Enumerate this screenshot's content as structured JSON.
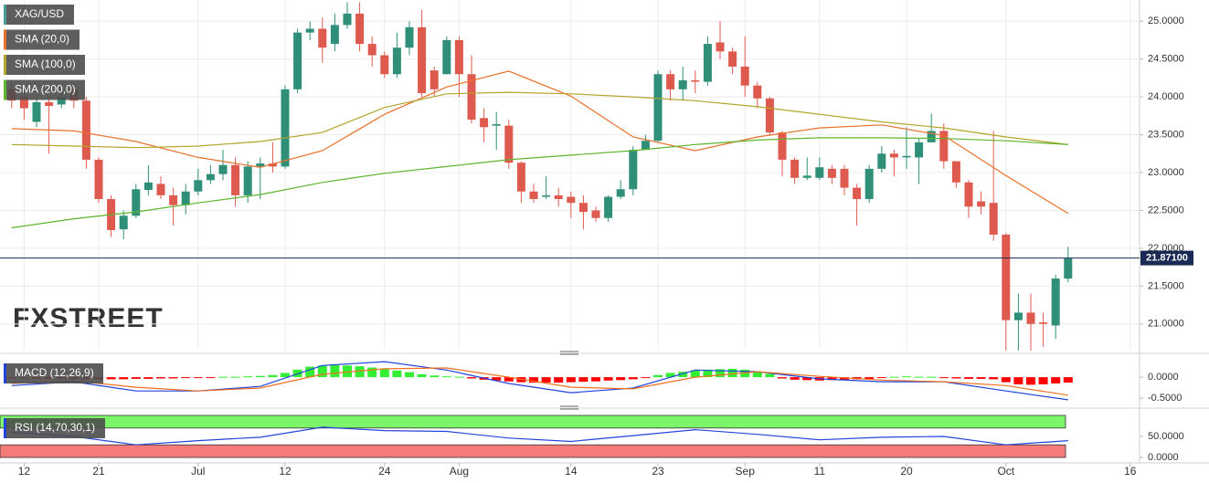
{
  "chart_data": [
    {
      "type": "candlestick",
      "watermark": "FXSTREET",
      "ylim": [
        20.66,
        25.28
      ],
      "yticks": [
        {
          "value": 21,
          "label": "21.0000"
        },
        {
          "value": 21.5,
          "label": "21.5000"
        },
        {
          "value": 22,
          "label": "22.0000"
        },
        {
          "value": 22.5,
          "label": "22.5000"
        },
        {
          "value": 23,
          "label": "23.0000"
        },
        {
          "value": 23.5,
          "label": "23.5000"
        },
        {
          "value": 24,
          "label": "24.0000"
        },
        {
          "value": 24.5,
          "label": "24.5000"
        },
        {
          "value": 25,
          "label": "25.0000"
        }
      ],
      "xlim": [
        -1,
        92
      ],
      "xticks": [
        {
          "value": 1,
          "label": "12"
        },
        {
          "value": 7,
          "label": "21"
        },
        {
          "value": 15,
          "label": "Jul"
        },
        {
          "value": 22,
          "label": "12"
        },
        {
          "value": 30,
          "label": "24"
        },
        {
          "value": 36,
          "label": "Aug"
        },
        {
          "value": 45,
          "label": "14"
        },
        {
          "value": 52,
          "label": "23"
        },
        {
          "value": 59,
          "label": "Sep"
        },
        {
          "value": 65,
          "label": "11"
        },
        {
          "value": 72,
          "label": "20"
        },
        {
          "value": 80,
          "label": "Oct"
        },
        {
          "value": 90,
          "label": "16"
        }
      ],
      "grid": true,
      "price_line": {
        "value": 21.871,
        "label": "21.87100",
        "color": "#1b2a55"
      },
      "series": [
        {
          "name": "XAG/USD",
          "type": "candlestick",
          "color": "#4a9e94",
          "up_color": "#2f8f78",
          "down_color": "#df5a4e",
          "open": [
            24.1,
            24.0,
            23.67,
            23.93,
            23.9,
            24.1,
            23.95,
            23.17,
            22.65,
            22.25,
            22.43,
            22.77,
            22.85,
            22.7,
            22.57,
            22.75,
            22.9,
            22.98,
            23.1,
            22.7,
            23.08,
            23.12,
            23.08,
            24.1,
            24.85,
            24.9,
            24.7,
            24.95,
            25.1,
            24.7,
            24.55,
            24.3,
            24.65,
            24.92,
            24.35,
            24.3,
            24.75,
            24.3,
            23.72,
            23.62,
            23.62,
            23.13,
            22.75,
            22.68,
            22.7,
            22.68,
            22.6,
            22.5,
            22.4,
            22.68,
            22.78,
            23.3,
            23.42,
            24.3,
            24.1,
            24.22,
            24.2,
            24.72,
            24.6,
            24.4,
            24.15,
            23.98,
            23.53,
            23.17,
            22.93,
            22.93,
            23.05,
            23.05,
            22.8,
            22.65,
            23.05,
            23.25,
            23.2,
            23.2,
            23.4,
            23.55,
            23.15,
            22.87,
            22.62,
            22.6,
            22.18,
            21.05,
            21.15,
            21.02,
            20.98,
            21.6
          ],
          "high": [
            24.2,
            24.15,
            24.0,
            24.0,
            24.1,
            24.2,
            24.0,
            23.2,
            22.7,
            22.5,
            22.85,
            23.1,
            22.95,
            22.8,
            22.85,
            23.05,
            23.1,
            23.3,
            23.2,
            23.15,
            23.2,
            23.4,
            24.15,
            24.9,
            25.0,
            25.05,
            25.1,
            25.25,
            25.25,
            24.8,
            24.6,
            24.85,
            25.0,
            25.15,
            24.4,
            24.8,
            24.8,
            24.55,
            23.85,
            23.8,
            23.7,
            23.15,
            22.85,
            22.95,
            22.8,
            22.75,
            22.7,
            22.55,
            22.7,
            22.9,
            23.35,
            23.5,
            24.35,
            24.35,
            24.4,
            24.35,
            24.8,
            25.0,
            24.65,
            24.8,
            24.2,
            24.0,
            23.55,
            23.2,
            23.2,
            23.2,
            23.1,
            23.1,
            22.85,
            23.1,
            23.35,
            23.3,
            23.6,
            23.45,
            23.78,
            23.65,
            23.15,
            22.9,
            22.75,
            23.55,
            22.2,
            21.4,
            21.4,
            21.15,
            21.65,
            22.02
          ],
          "low": [
            23.85,
            23.7,
            23.6,
            23.25,
            23.85,
            23.85,
            23.05,
            22.6,
            22.15,
            22.12,
            22.4,
            22.7,
            22.65,
            22.3,
            22.45,
            22.7,
            22.85,
            22.9,
            22.55,
            22.6,
            22.65,
            23.0,
            23.05,
            24.05,
            24.75,
            24.45,
            24.6,
            24.9,
            24.6,
            24.4,
            24.25,
            24.25,
            24.55,
            24.0,
            24.0,
            24.3,
            24.0,
            23.65,
            23.4,
            23.3,
            23.05,
            22.6,
            22.6,
            22.65,
            22.55,
            22.4,
            22.25,
            22.35,
            22.35,
            22.65,
            22.7,
            23.3,
            23.4,
            23.95,
            23.95,
            24.05,
            24.15,
            24.5,
            24.3,
            24.0,
            23.85,
            23.5,
            22.95,
            22.85,
            22.9,
            22.9,
            22.85,
            22.7,
            22.3,
            22.6,
            23.0,
            22.95,
            23.05,
            22.85,
            23.4,
            23.05,
            22.8,
            22.4,
            22.45,
            22.1,
            20.65,
            20.65,
            20.65,
            20.7,
            20.8,
            21.55
          ],
          "close": [
            23.95,
            23.85,
            23.93,
            23.88,
            24.0,
            23.95,
            23.17,
            22.65,
            22.24,
            22.43,
            22.78,
            22.87,
            22.7,
            22.57,
            22.75,
            22.9,
            22.98,
            23.1,
            22.7,
            23.08,
            23.12,
            23.08,
            24.1,
            24.85,
            24.9,
            24.65,
            24.95,
            25.1,
            24.7,
            24.55,
            24.3,
            24.65,
            24.92,
            24.05,
            24.1,
            24.75,
            24.3,
            23.7,
            23.6,
            23.64,
            23.13,
            22.75,
            22.65,
            22.7,
            22.65,
            22.6,
            22.48,
            22.4,
            22.68,
            22.78,
            23.3,
            23.42,
            24.3,
            24.1,
            24.22,
            24.2,
            24.7,
            24.6,
            24.4,
            24.15,
            23.98,
            23.53,
            23.17,
            22.93,
            22.96,
            23.07,
            22.93,
            22.8,
            22.65,
            23.05,
            23.25,
            23.2,
            23.22,
            23.4,
            23.55,
            23.15,
            22.87,
            22.55,
            22.55,
            22.18,
            21.05,
            21.15,
            21.0,
            21.0,
            21.6,
            21.87
          ]
        },
        {
          "name": "SMA (20,0)",
          "color": "#e8702a",
          "x": [
            0,
            5,
            10,
            15,
            20,
            25,
            30,
            35,
            40,
            45,
            50,
            55,
            60,
            65,
            70,
            75,
            80,
            85
          ],
          "values": [
            23.58,
            23.55,
            23.41,
            23.2,
            23.07,
            23.29,
            23.77,
            24.13,
            24.34,
            24.01,
            23.47,
            23.29,
            23.47,
            23.59,
            23.63,
            23.49,
            22.96,
            22.46
          ]
        },
        {
          "name": "SMA (100,0)",
          "color": "#b3a42a",
          "x": [
            0,
            5,
            10,
            15,
            20,
            25,
            30,
            35,
            40,
            45,
            50,
            55,
            60,
            65,
            70,
            75,
            80,
            85
          ],
          "values": [
            23.37,
            23.35,
            23.33,
            23.35,
            23.41,
            23.53,
            23.86,
            24.04,
            24.06,
            24.04,
            24.0,
            23.95,
            23.87,
            23.77,
            23.67,
            23.59,
            23.47,
            23.37
          ]
        },
        {
          "name": "SMA (200,0)",
          "color": "#5db52c",
          "x": [
            0,
            5,
            10,
            15,
            20,
            25,
            30,
            35,
            40,
            45,
            50,
            55,
            60,
            65,
            70,
            75,
            80,
            85
          ],
          "values": [
            22.27,
            22.39,
            22.48,
            22.6,
            22.71,
            22.87,
            22.99,
            23.08,
            23.17,
            23.23,
            23.29,
            23.37,
            23.43,
            23.46,
            23.46,
            23.45,
            23.42,
            23.37
          ]
        }
      ]
    },
    {
      "type": "macd",
      "title": "MACD (12,26,9)",
      "ylim": [
        -0.63,
        0.46
      ],
      "yticks": [
        {
          "value": -0.5,
          "label": "-0.5000"
        },
        {
          "value": 0,
          "label": "0.0000"
        }
      ],
      "series": [
        {
          "type": "bar",
          "up_color": "#33ee33",
          "down_color": "#ff0000",
          "values": [
            -0.03,
            -0.03,
            -0.04,
            -0.04,
            -0.04,
            -0.04,
            -0.05,
            -0.05,
            -0.05,
            -0.05,
            -0.04,
            -0.04,
            -0.03,
            -0.03,
            -0.02,
            -0.02,
            -0.01,
            0.01,
            0.01,
            0.02,
            0.03,
            0.05,
            0.1,
            0.18,
            0.25,
            0.28,
            0.29,
            0.28,
            0.26,
            0.23,
            0.2,
            0.16,
            0.12,
            0.07,
            0.04,
            0.02,
            0.01,
            -0.03,
            -0.06,
            -0.08,
            -0.1,
            -0.12,
            -0.13,
            -0.13,
            -0.13,
            -0.12,
            -0.11,
            -0.1,
            -0.08,
            -0.07,
            -0.05,
            -0.02,
            0.05,
            0.1,
            0.13,
            0.16,
            0.18,
            0.19,
            0.2,
            0.18,
            0.14,
            0.08,
            -0.03,
            -0.06,
            -0.07,
            -0.08,
            -0.07,
            -0.06,
            -0.05,
            -0.04,
            -0.02,
            0.01,
            0.02,
            0.01,
            0.01,
            -0.02,
            -0.03,
            -0.04,
            -0.04,
            -0.05,
            -0.12,
            -0.17,
            -0.18,
            -0.17,
            -0.15,
            -0.13
          ]
        },
        {
          "type": "line",
          "color": "#2244dd",
          "x": [
            0,
            5,
            10,
            15,
            20,
            25,
            30,
            35,
            40,
            45,
            50,
            55,
            60,
            65,
            70,
            75,
            80,
            85
          ],
          "values": [
            -0.2,
            -0.11,
            -0.33,
            -0.33,
            -0.22,
            0.28,
            0.37,
            0.17,
            -0.15,
            -0.37,
            -0.26,
            0.17,
            0.13,
            -0.04,
            -0.11,
            -0.11,
            -0.33,
            -0.54
          ]
        },
        {
          "type": "line",
          "color": "#f07020",
          "x": [
            0,
            5,
            10,
            15,
            20,
            25,
            30,
            35,
            40,
            45,
            50,
            55,
            60,
            65,
            70,
            75,
            80,
            85
          ],
          "values": [
            -0.15,
            -0.09,
            -0.24,
            -0.33,
            -0.26,
            0.07,
            0.2,
            0.22,
            0,
            -0.24,
            -0.28,
            0,
            0.13,
            0.02,
            -0.07,
            -0.11,
            -0.2,
            -0.43
          ]
        }
      ]
    },
    {
      "type": "line",
      "title": "RSI (14,70,30,1)",
      "ylim": [
        -13,
        106.5
      ],
      "yticks": [
        {
          "value": 0,
          "label": "0.0000"
        },
        {
          "value": 50,
          "label": "50.0000"
        }
      ],
      "bands": [
        {
          "from": 70,
          "to": 100,
          "color": "#7cf56a"
        },
        {
          "from": 0,
          "to": 30,
          "color": "#f57b7b"
        }
      ],
      "series": [
        {
          "type": "line",
          "color": "#2244dd",
          "x": [
            0,
            5,
            10,
            15,
            20,
            25,
            30,
            35,
            40,
            45,
            50,
            55,
            60,
            65,
            70,
            75,
            80,
            85
          ],
          "values": [
            60,
            50,
            30,
            40,
            48,
            72,
            64,
            62,
            46,
            38,
            52,
            66,
            55,
            42,
            48,
            50,
            30,
            40
          ]
        }
      ]
    }
  ]
}
